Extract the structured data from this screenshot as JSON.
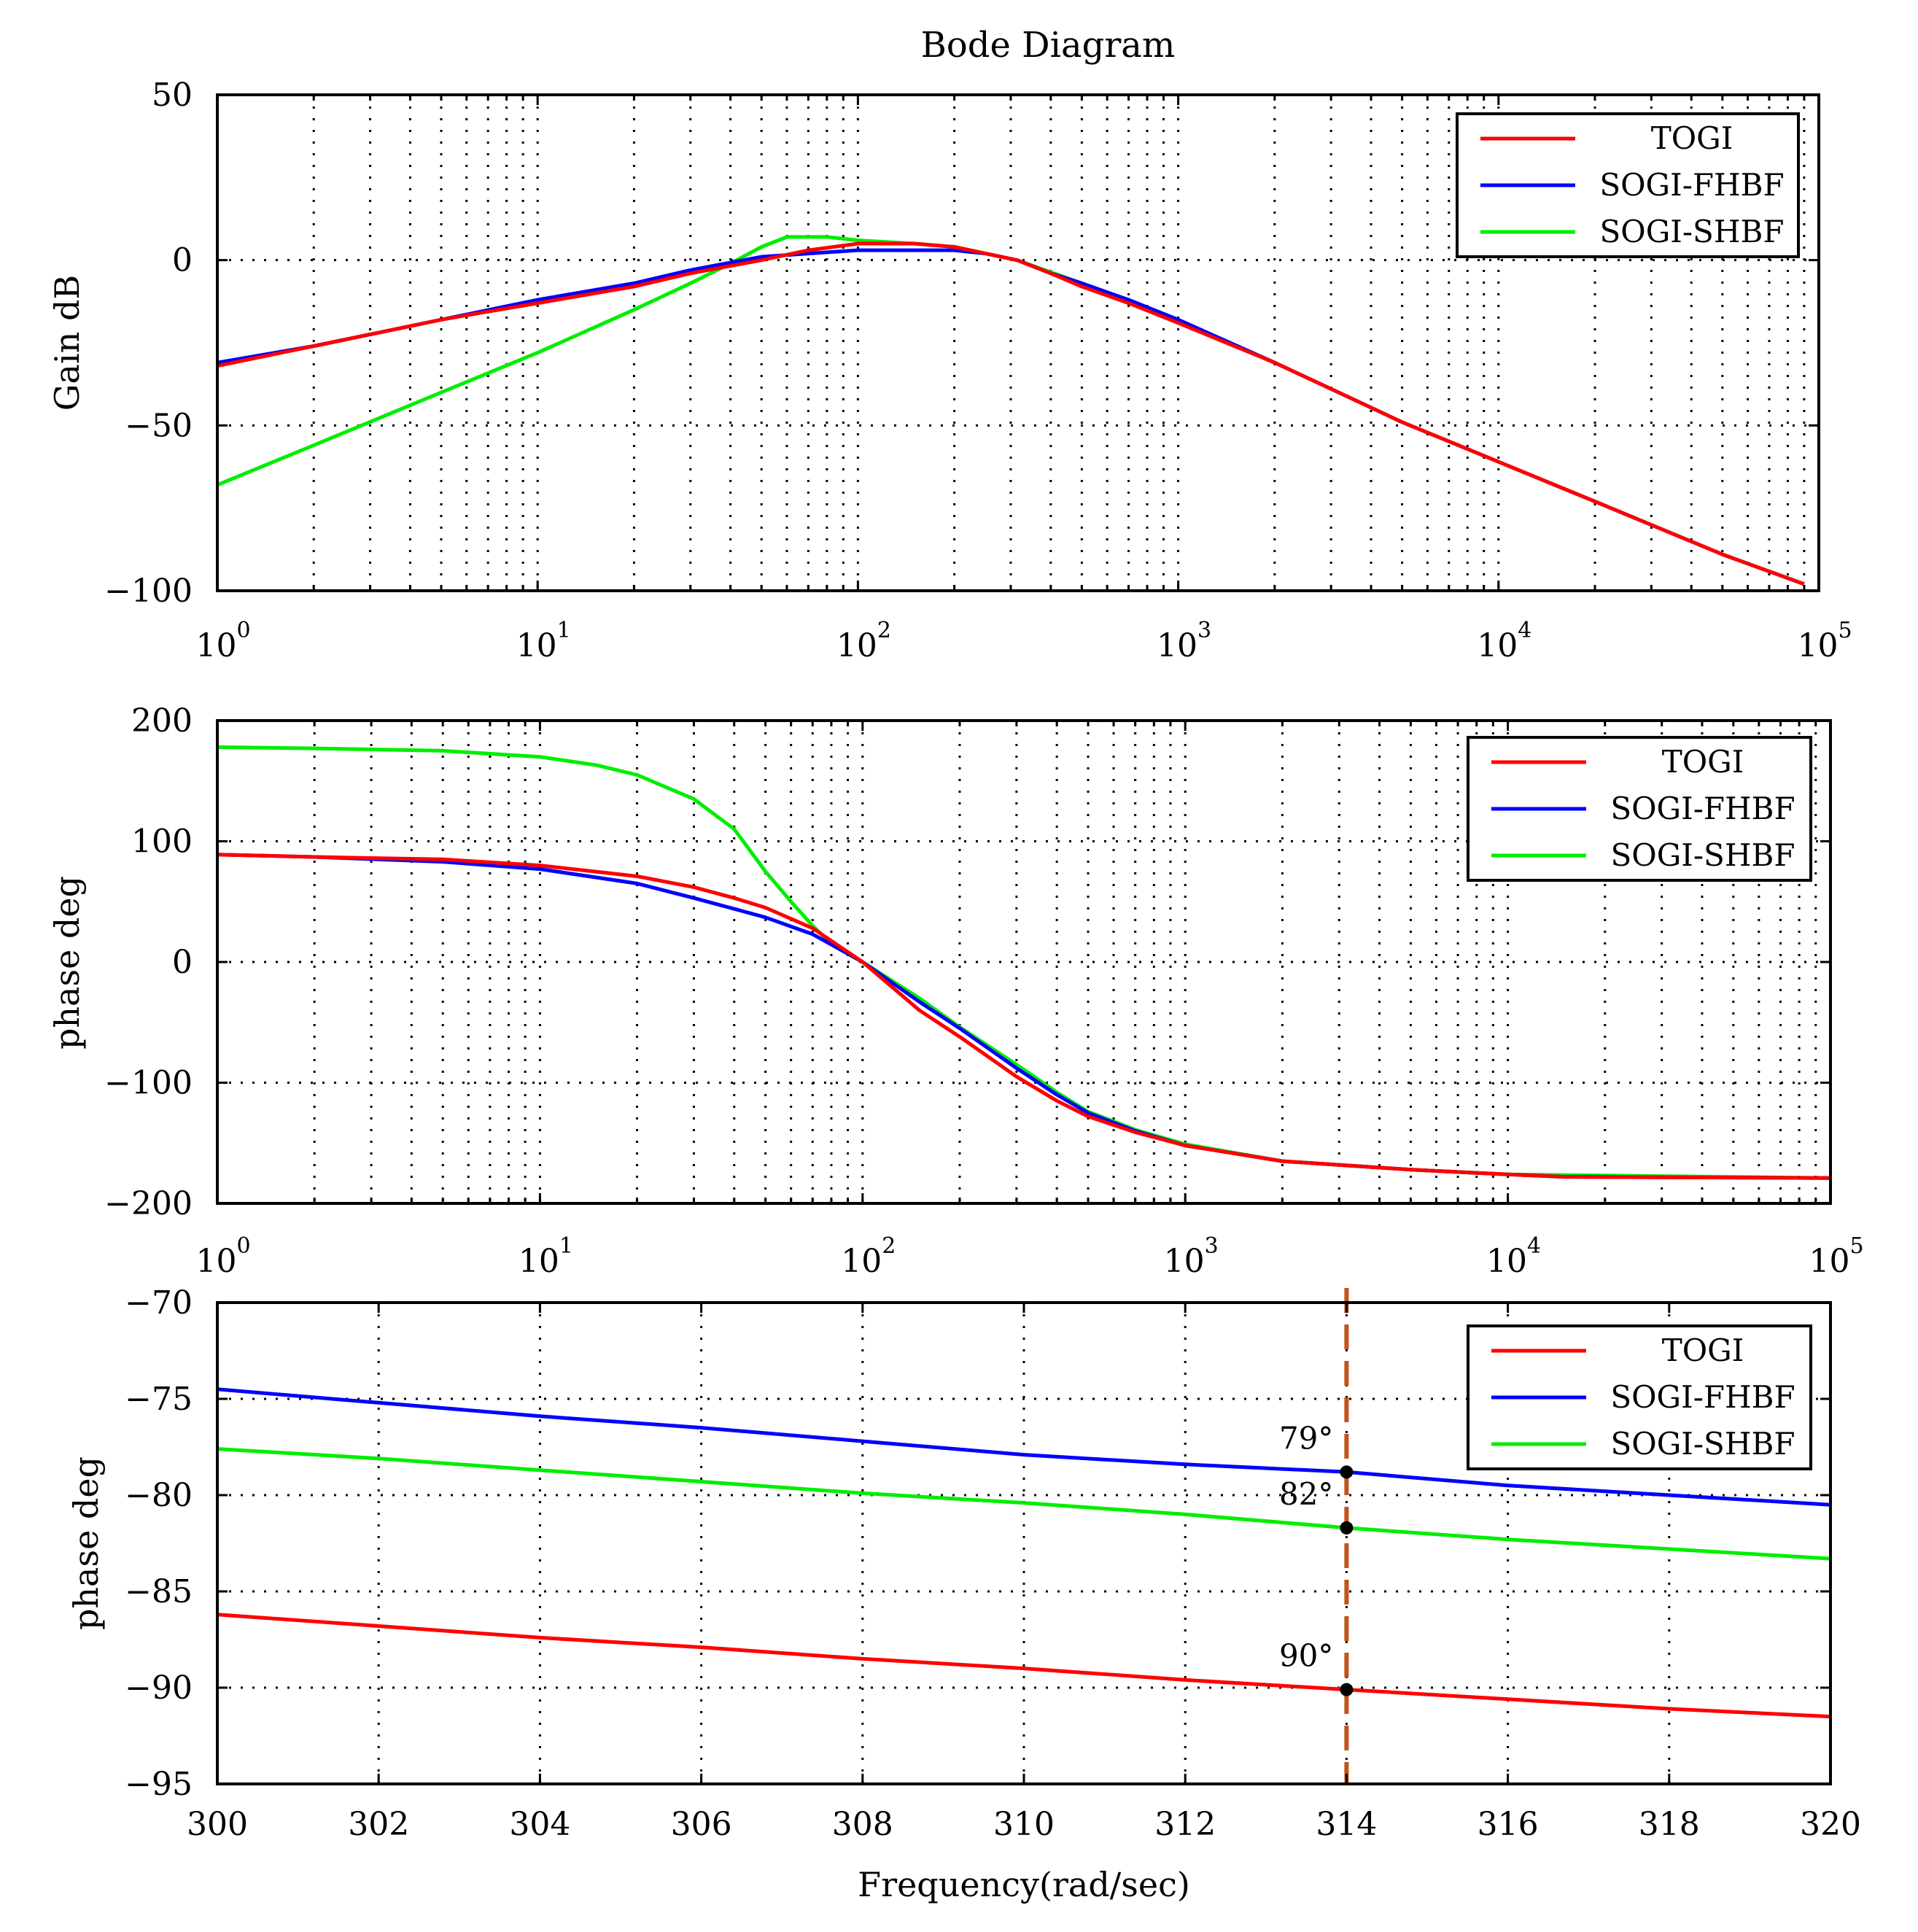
{
  "figure_title": "Bode Diagram",
  "colors": {
    "TOGI": "#ff0000",
    "SOGI-FHBF": "#0000ff",
    "SOGI-SHBF": "#00ee00",
    "marker_line": "#c0541a"
  },
  "chart_data": [
    {
      "type": "line",
      "name": "gain-plot",
      "title": "Bode Diagram",
      "xlabel": "",
      "ylabel": "Gain dB",
      "xscale": "log",
      "xlim": [
        1,
        100000
      ],
      "ylim": [
        -100,
        50
      ],
      "grid": true,
      "legend": "top-right",
      "yticks": [
        {
          "v": 50,
          "label": "50"
        },
        {
          "v": 0,
          "label": "0"
        },
        {
          "v": -50,
          "label": "−50"
        },
        {
          "v": -100,
          "label": "−100"
        }
      ],
      "xticks": [
        {
          "v": 1,
          "base": "10",
          "exp": "0"
        },
        {
          "v": 10,
          "base": "10",
          "exp": "1"
        },
        {
          "v": 100,
          "base": "10",
          "exp": "2"
        },
        {
          "v": 1000,
          "base": "10",
          "exp": "3"
        },
        {
          "v": 10000,
          "base": "10",
          "exp": "4"
        },
        {
          "v": 100000,
          "base": "10",
          "exp": "5"
        }
      ],
      "series": [
        {
          "name": "TOGI",
          "x": [
            1,
            2,
            5,
            10,
            20,
            30,
            50,
            70,
            100,
            150,
            200,
            250,
            314,
            400,
            500,
            700,
            1000,
            2000,
            5000,
            10000,
            20000,
            50000,
            90000
          ],
          "y": [
            -32,
            -26,
            -18,
            -13,
            -8,
            -4,
            0,
            3,
            5,
            5,
            4,
            2,
            0,
            -4,
            -8,
            -13,
            -19,
            -31,
            -49,
            -61,
            -73,
            -89,
            -98
          ]
        },
        {
          "name": "SOGI-FHBF",
          "x": [
            1,
            2,
            5,
            10,
            20,
            30,
            50,
            70,
            100,
            150,
            200,
            250,
            314,
            400,
            500,
            700,
            1000,
            2000,
            5000,
            10000,
            20000,
            50000,
            90000
          ],
          "y": [
            -31,
            -26,
            -18,
            -12,
            -7,
            -3,
            1,
            2,
            3,
            3,
            3,
            2,
            0,
            -4,
            -7,
            -12,
            -18,
            -31,
            -49,
            -61,
            -73,
            -89,
            -98
          ]
        },
        {
          "name": "SOGI-SHBF",
          "x": [
            1,
            2,
            5,
            10,
            20,
            30,
            40,
            50,
            60,
            80,
            100,
            150,
            200,
            314,
            500,
            1000
          ],
          "y": [
            -68,
            -56,
            -40,
            -28,
            -15,
            -7,
            -1,
            4,
            7,
            7,
            6,
            5,
            4,
            0,
            -7,
            -18
          ]
        }
      ]
    },
    {
      "type": "line",
      "name": "phase-plot",
      "title": "",
      "xlabel": "",
      "ylabel": "phase deg",
      "xscale": "log",
      "xlim": [
        1,
        100000
      ],
      "ylim": [
        -200,
        200
      ],
      "grid": true,
      "legend": "top-right",
      "yticks": [
        {
          "v": 200,
          "label": "200"
        },
        {
          "v": 100,
          "label": "100"
        },
        {
          "v": 0,
          "label": "0"
        },
        {
          "v": -100,
          "label": "−100"
        },
        {
          "v": -200,
          "label": "−200"
        }
      ],
      "xticks": [
        {
          "v": 1,
          "base": "10",
          "exp": "0"
        },
        {
          "v": 10,
          "base": "10",
          "exp": "1"
        },
        {
          "v": 100,
          "base": "10",
          "exp": "2"
        },
        {
          "v": 1000,
          "base": "10",
          "exp": "3"
        },
        {
          "v": 10000,
          "base": "10",
          "exp": "4"
        },
        {
          "v": 100000,
          "base": "10",
          "exp": "5"
        }
      ],
      "series": [
        {
          "name": "TOGI",
          "x": [
            1,
            2,
            5,
            10,
            20,
            30,
            40,
            50,
            70,
            100,
            150,
            200,
            300,
            400,
            500,
            700,
            1000,
            2000,
            5000,
            10000,
            15000,
            100000
          ],
          "y": [
            89,
            87,
            85,
            80,
            71,
            62,
            53,
            45,
            28,
            0,
            -40,
            -62,
            -95,
            -115,
            -128,
            -141,
            -152,
            -165,
            -172,
            -176,
            -178,
            -179
          ]
        },
        {
          "name": "SOGI-FHBF",
          "x": [
            1,
            2,
            5,
            10,
            20,
            30,
            40,
            50,
            70,
            100,
            150,
            200,
            300,
            400,
            500,
            700,
            1000,
            2000,
            5000,
            10000,
            15000,
            100000
          ],
          "y": [
            89,
            87,
            83,
            77,
            65,
            53,
            44,
            37,
            23,
            0,
            -33,
            -55,
            -88,
            -110,
            -125,
            -140,
            -152,
            -165,
            -172,
            -176,
            -178,
            -179
          ]
        },
        {
          "name": "SOGI-SHBF",
          "x": [
            1,
            2,
            5,
            10,
            15,
            20,
            30,
            40,
            50,
            60,
            70,
            80,
            100,
            150,
            200,
            300,
            400,
            500,
            700,
            1000,
            2000,
            5000,
            10000,
            100000
          ],
          "y": [
            178,
            177,
            175,
            170,
            163,
            155,
            135,
            110,
            75,
            50,
            30,
            15,
            0,
            -30,
            -54,
            -85,
            -108,
            -124,
            -139,
            -151,
            -165,
            -172,
            -176,
            -179
          ]
        }
      ]
    },
    {
      "type": "line",
      "name": "phase-zoom-plot",
      "title": "",
      "xlabel": "Frequency(rad/sec)",
      "ylabel": "phase deg",
      "xscale": "linear",
      "xlim": [
        300,
        320
      ],
      "ylim": [
        -95,
        -70
      ],
      "grid": true,
      "legend": "top-right",
      "yticks": [
        {
          "v": -70,
          "label": "−70"
        },
        {
          "v": -75,
          "label": "−75"
        },
        {
          "v": -80,
          "label": "−80"
        },
        {
          "v": -85,
          "label": "−85"
        },
        {
          "v": -90,
          "label": "−90"
        },
        {
          "v": -95,
          "label": "−95"
        }
      ],
      "xticks": [
        {
          "v": 300,
          "label": "300"
        },
        {
          "v": 302,
          "label": "302"
        },
        {
          "v": 304,
          "label": "304"
        },
        {
          "v": 306,
          "label": "306"
        },
        {
          "v": 308,
          "label": "308"
        },
        {
          "v": 310,
          "label": "310"
        },
        {
          "v": 312,
          "label": "312"
        },
        {
          "v": 314,
          "label": "314"
        },
        {
          "v": 316,
          "label": "316"
        },
        {
          "v": 318,
          "label": "318"
        },
        {
          "v": 320,
          "label": "320"
        }
      ],
      "series": [
        {
          "name": "TOGI",
          "x": [
            300,
            302,
            304,
            306,
            308,
            310,
            312,
            314,
            316,
            318,
            320
          ],
          "y": [
            -86.2,
            -86.8,
            -87.4,
            -87.9,
            -88.5,
            -89.0,
            -89.6,
            -90.1,
            -90.6,
            -91.1,
            -91.5
          ]
        },
        {
          "name": "SOGI-FHBF",
          "x": [
            300,
            302,
            304,
            306,
            308,
            310,
            312,
            314,
            316,
            318,
            320
          ],
          "y": [
            -74.5,
            -75.2,
            -75.9,
            -76.5,
            -77.2,
            -77.9,
            -78.4,
            -78.8,
            -79.5,
            -80.0,
            -80.5
          ]
        },
        {
          "name": "SOGI-SHBF",
          "x": [
            300,
            302,
            304,
            306,
            308,
            310,
            312,
            314,
            316,
            318,
            320
          ],
          "y": [
            -77.6,
            -78.1,
            -78.7,
            -79.3,
            -79.9,
            -80.4,
            -81.0,
            -81.7,
            -82.3,
            -82.8,
            -83.3
          ]
        }
      ],
      "marker": {
        "x": 314,
        "style": "dashed-vertical-line"
      },
      "annotations": [
        {
          "text": "79°",
          "x": 314,
          "y": -78.8
        },
        {
          "text": "82°",
          "x": 314,
          "y": -81.7
        },
        {
          "text": "90°",
          "x": 314,
          "y": -90.1
        }
      ]
    }
  ]
}
